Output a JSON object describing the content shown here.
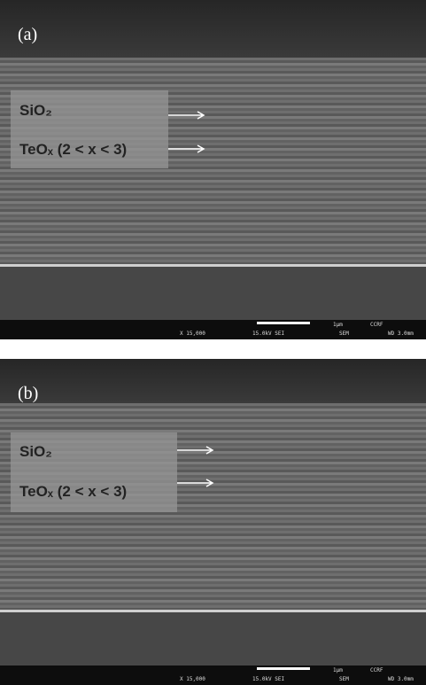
{
  "panels": [
    {
      "label": "(a)",
      "annotations": [
        "SiO₂",
        "TeOₓ (2 < x < 3)"
      ],
      "info": {
        "magnification": "X 15,000",
        "voltage": "15.0kV SEI",
        "scale": "1μm",
        "lab": "CCRF",
        "mode": "SEM",
        "distance": "WD 3.0mm"
      }
    },
    {
      "label": "(b)",
      "annotations": [
        "SiO₂",
        "TeOₓ (2 < x < 3)"
      ],
      "info": {
        "magnification": "X 15,000",
        "voltage": "15.0kV SEI",
        "scale": "1μm",
        "lab": "CCRF",
        "mode": "SEM",
        "distance": "WD 3.0mm"
      }
    }
  ]
}
